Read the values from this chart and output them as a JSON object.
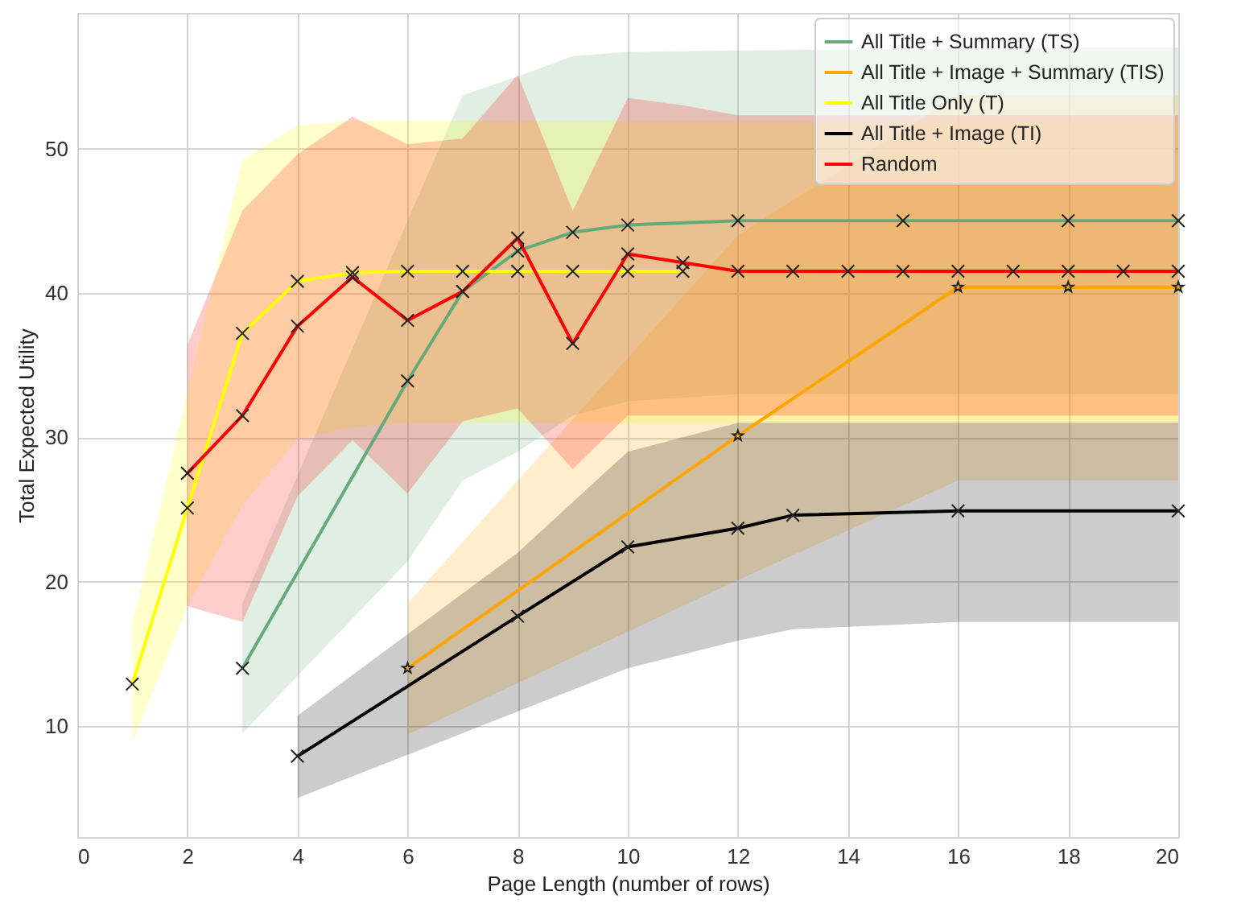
{
  "chart_data": {
    "type": "line",
    "xlabel": "Page Length (number of rows)",
    "ylabel": "Total Expected Utility",
    "xlim": [
      0,
      20
    ],
    "xticks": [
      0,
      2,
      4,
      6,
      8,
      10,
      12,
      14,
      16,
      18,
      20
    ],
    "ylim": [
      2.3,
      59.4
    ],
    "yticks": [
      10,
      20,
      30,
      40,
      50
    ],
    "grid": true,
    "legend": "top right",
    "line_style": "solid",
    "series": [
      {
        "name": "All Title + Summary (TS)",
        "color": "#66aa77",
        "marker": "cross",
        "x": [
          3,
          6,
          7,
          8,
          9,
          10,
          12,
          15,
          18,
          20
        ],
        "values": [
          14.0,
          33.9,
          40.1,
          42.9,
          44.2,
          44.7,
          45.0,
          45.0,
          45.0,
          45.0
        ],
        "lower": [
          9.5,
          21.4,
          27.0,
          29.0,
          31.5,
          32.5,
          33.0,
          33.0,
          33.0,
          33.0
        ],
        "upper": [
          18.5,
          45.0,
          53.7,
          55.0,
          56.4,
          56.7,
          56.8,
          56.9,
          57.0,
          57.0
        ]
      },
      {
        "name": "All Title + Image + Summary (TIS)",
        "color": "#ffa500",
        "marker": "star",
        "x": [
          6,
          12,
          16,
          18,
          20
        ],
        "values": [
          14.0,
          30.1,
          40.4,
          40.4,
          40.4
        ],
        "lower": [
          9.4,
          20.1,
          27.0,
          27.0,
          27.0
        ],
        "upper": [
          18.5,
          44.0,
          53.7,
          53.7,
          53.7
        ]
      },
      {
        "name": "All Title Only (T)",
        "color": "#ffff00",
        "marker": "cross",
        "x": [
          1,
          2,
          3,
          4,
          5,
          6,
          7,
          8,
          9,
          10,
          11,
          12,
          13,
          14,
          15,
          16,
          17,
          18,
          19,
          20
        ],
        "values": [
          12.9,
          25.1,
          37.2,
          40.8,
          41.4,
          41.5,
          41.5,
          41.5,
          41.5,
          41.5,
          41.5,
          null,
          null,
          null,
          null,
          null,
          null,
          null,
          null,
          null
        ],
        "lower": [
          8.9,
          18.3,
          25.3,
          29.9,
          30.7,
          31.0,
          31.0,
          31.0,
          31.0,
          31.0,
          31.0,
          31.0,
          31.0,
          31.0,
          31.0,
          31.0,
          31.0,
          31.0,
          31.0,
          31.0
        ],
        "upper": [
          17.0,
          33.1,
          49.2,
          51.6,
          51.9,
          51.9,
          51.9,
          51.9,
          51.9,
          51.9,
          51.9,
          51.9,
          51.9,
          51.9,
          51.9,
          51.9,
          51.9,
          51.9,
          51.9,
          51.9
        ]
      },
      {
        "name": "All Title + Image (TI)",
        "color": "#000000",
        "marker": "cross",
        "x": [
          4,
          8,
          10,
          12,
          13,
          16,
          20
        ],
        "values": [
          7.9,
          17.6,
          22.4,
          23.7,
          24.6,
          24.9,
          24.9
        ],
        "lower": [
          5.0,
          11.0,
          14.0,
          15.9,
          16.7,
          17.2,
          17.2
        ],
        "upper": [
          10.7,
          22.0,
          29.0,
          31.0,
          31.0,
          31.0,
          31.0
        ]
      },
      {
        "name": "Random",
        "color": "#ff0000",
        "marker": "cross",
        "x": [
          2,
          3,
          4,
          5,
          6,
          7,
          8,
          9,
          10,
          11,
          12,
          13,
          14,
          15,
          16,
          17,
          18,
          19,
          20
        ],
        "values": [
          27.5,
          31.5,
          37.7,
          41.1,
          38.1,
          40.1,
          43.8,
          36.5,
          42.7,
          42.1,
          41.5,
          41.5,
          41.5,
          41.5,
          41.5,
          41.5,
          41.5,
          41.5,
          41.5
        ],
        "lower": [
          18.3,
          17.2,
          25.9,
          29.8,
          26.1,
          31.1,
          32.0,
          27.8,
          31.5,
          31.5,
          31.5,
          31.5,
          31.5,
          31.5,
          31.5,
          31.5,
          31.5,
          31.5,
          31.5
        ],
        "upper": [
          36.4,
          45.7,
          49.6,
          52.2,
          50.3,
          50.7,
          55.1,
          45.7,
          53.5,
          53.0,
          52.3,
          52.3,
          52.3,
          52.3,
          52.3,
          52.3,
          52.3,
          52.3,
          52.3
        ]
      }
    ]
  }
}
